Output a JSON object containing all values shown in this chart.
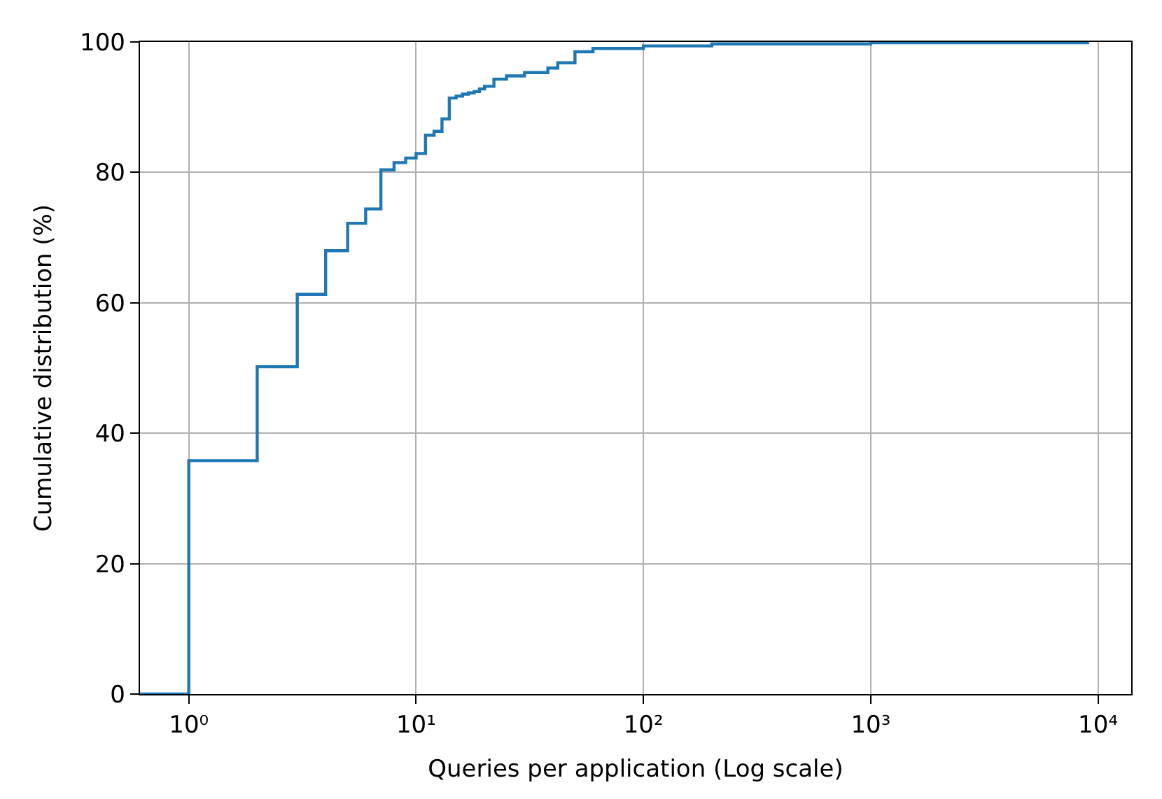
{
  "chart_data": {
    "type": "step",
    "xlabel": "Queries per application (Log scale)",
    "ylabel": "Cumulative distribution (%)",
    "x": [
      0.61,
      1,
      2,
      3,
      4,
      5,
      6,
      7,
      8,
      9,
      10,
      11,
      12,
      13,
      14,
      15,
      16,
      17,
      18,
      19,
      20,
      22,
      25,
      30,
      38,
      42,
      50,
      60,
      100,
      200,
      1000,
      9000
    ],
    "series": [
      {
        "color": "#1f77b4",
        "values": [
          0,
          35.8,
          50.2,
          61.3,
          68.0,
          72.2,
          74.4,
          80.4,
          81.5,
          82.2,
          82.9,
          85.7,
          86.3,
          88.2,
          91.4,
          91.7,
          92.0,
          92.2,
          92.4,
          92.8,
          93.2,
          94.3,
          94.8,
          95.3,
          96.0,
          96.8,
          98.5,
          99.0,
          99.4,
          99.7,
          99.9,
          100
        ]
      }
    ],
    "log": "x",
    "xlim": [
      0.61,
      14000
    ],
    "ylim": [
      0,
      100
    ],
    "xticks": [
      {
        "value": 1,
        "label": "10⁰"
      },
      {
        "value": 10,
        "label": "10¹"
      },
      {
        "value": 100,
        "label": "10²"
      },
      {
        "value": 1000,
        "label": "10³"
      },
      {
        "value": 10000,
        "label": "10⁴"
      }
    ],
    "yticks": [
      0,
      20,
      40,
      60,
      80,
      100
    ],
    "grid": true
  }
}
